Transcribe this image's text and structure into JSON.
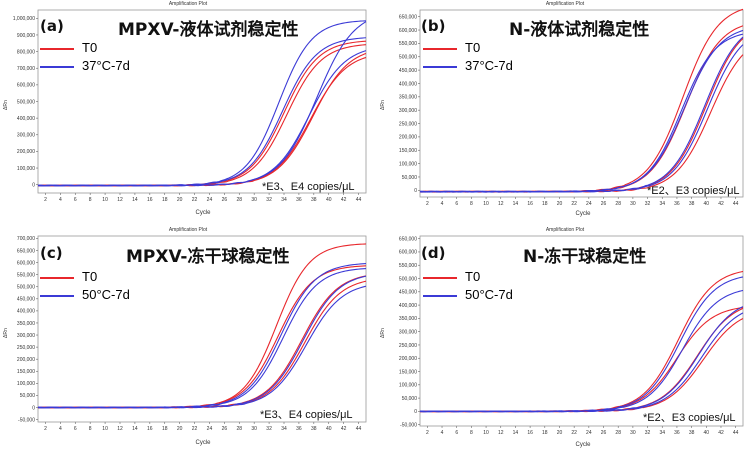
{
  "panels": [
    {
      "id": "a",
      "plot_title": "Amplification Plot",
      "label": "(a)",
      "title": "MPXV-液体试剂稳定性",
      "note": "*E3、E4 copies/μL",
      "legend": [
        {
          "name": "T0",
          "color": "#e8272c"
        },
        {
          "name": "37°C-7d",
          "color": "#3b3ad6"
        }
      ],
      "chart_data": {
        "type": "line",
        "xlabel": "Cycle",
        "ylabel": "ΔRn",
        "xlim": [
          1,
          45
        ],
        "ylim": [
          -50000,
          1050000
        ],
        "yticks": [
          0,
          100000,
          200000,
          300000,
          400000,
          500000,
          600000,
          700000,
          800000,
          900000,
          1000000
        ],
        "ytick_labels": [
          "0",
          "100,000",
          "200,000",
          "300,000",
          "400,000",
          "500,000",
          "600,000",
          "700,000",
          "800,000",
          "900,000",
          "1,000,000"
        ],
        "xticks": [
          2,
          4,
          6,
          8,
          10,
          12,
          14,
          16,
          18,
          20,
          22,
          24,
          26,
          28,
          30,
          32,
          34,
          36,
          38,
          40,
          42,
          44
        ],
        "series": [
          {
            "color": "#e8272c",
            "plateau": 870000,
            "midpoint": 34.0,
            "slope": 2.3,
            "baseline": -5000
          },
          {
            "color": "#e8272c",
            "plateau": 850000,
            "midpoint": 34.4,
            "slope": 2.3,
            "baseline": -5000
          },
          {
            "color": "#e8272c",
            "plateau": 800000,
            "midpoint": 37.6,
            "slope": 2.4,
            "baseline": -5000
          },
          {
            "color": "#e8272c",
            "plateau": 830000,
            "midpoint": 37.9,
            "slope": 2.4,
            "baseline": -5000
          },
          {
            "color": "#3b3ad6",
            "plateau": 990000,
            "midpoint": 33.3,
            "slope": 2.2,
            "baseline": -5000
          },
          {
            "color": "#3b3ad6",
            "plateau": 890000,
            "midpoint": 33.8,
            "slope": 2.3,
            "baseline": -5000
          },
          {
            "color": "#3b3ad6",
            "plateau": 1050000,
            "midpoint": 38.4,
            "slope": 2.5,
            "baseline": -5000
          },
          {
            "color": "#3b3ad6",
            "plateau": 840000,
            "midpoint": 37.4,
            "slope": 2.4,
            "baseline": -5000
          }
        ]
      }
    },
    {
      "id": "b",
      "plot_title": "Amplification Plot",
      "label": "(b)",
      "title": "N-液体试剂稳定性",
      "note": "*E2、E3 copies/μL",
      "legend": [
        {
          "name": "T0",
          "color": "#e8272c"
        },
        {
          "name": "37°C-7d",
          "color": "#3b3ad6"
        }
      ],
      "chart_data": {
        "type": "line",
        "xlabel": "Cycle",
        "ylabel": "ΔRn",
        "xlim": [
          1,
          45
        ],
        "ylim": [
          -25000,
          675000
        ],
        "yticks": [
          0,
          50000,
          100000,
          150000,
          200000,
          250000,
          300000,
          350000,
          400000,
          450000,
          500000,
          550000,
          600000,
          650000
        ],
        "ytick_labels": [
          "0",
          "50,000",
          "100,000",
          "150,000",
          "200,000",
          "250,000",
          "300,000",
          "350,000",
          "400,000",
          "450,000",
          "500,000",
          "550,000",
          "600,000",
          "650,000"
        ],
        "xticks": [
          2,
          4,
          6,
          8,
          10,
          12,
          14,
          16,
          18,
          20,
          22,
          24,
          26,
          28,
          30,
          32,
          34,
          36,
          38,
          40,
          42,
          44
        ],
        "series": [
          {
            "color": "#e8272c",
            "plateau": 700000,
            "midpoint": 36.8,
            "slope": 2.4,
            "baseline": -5000
          },
          {
            "color": "#e8272c",
            "plateau": 640000,
            "midpoint": 37.2,
            "slope": 2.4,
            "baseline": -5000
          },
          {
            "color": "#e8272c",
            "plateau": 640000,
            "midpoint": 40.0,
            "slope": 2.4,
            "baseline": -5000
          },
          {
            "color": "#e8272c",
            "plateau": 590000,
            "midpoint": 40.6,
            "slope": 2.4,
            "baseline": -5000
          },
          {
            "color": "#3b3ad6",
            "plateau": 600000,
            "midpoint": 36.6,
            "slope": 2.3,
            "baseline": -5000
          },
          {
            "color": "#3b3ad6",
            "plateau": 620000,
            "midpoint": 37.0,
            "slope": 2.4,
            "baseline": -5000
          },
          {
            "color": "#3b3ad6",
            "plateau": 640000,
            "midpoint": 39.8,
            "slope": 2.4,
            "baseline": -5000
          },
          {
            "color": "#3b3ad6",
            "plateau": 620000,
            "midpoint": 40.2,
            "slope": 2.4,
            "baseline": -5000
          }
        ]
      }
    },
    {
      "id": "c",
      "plot_title": "Amplification Plot",
      "label": "(c)",
      "title": "MPXV-冻干球稳定性",
      "note": "*E3、E4 copies/μL",
      "legend": [
        {
          "name": "T0",
          "color": "#e8272c"
        },
        {
          "name": "50°C-7d",
          "color": "#3b3ad6"
        }
      ],
      "chart_data": {
        "type": "line",
        "xlabel": "Cycle",
        "ylabel": "ΔRn",
        "xlim": [
          1,
          45
        ],
        "ylim": [
          -60000,
          710000
        ],
        "yticks": [
          -50000,
          0,
          50000,
          100000,
          150000,
          200000,
          250000,
          300000,
          350000,
          400000,
          450000,
          500000,
          550000,
          600000,
          650000,
          700000
        ],
        "ytick_labels": [
          "-50,000",
          "0",
          "50,000",
          "100,000",
          "150,000",
          "200,000",
          "250,000",
          "300,000",
          "350,000",
          "400,000",
          "450,000",
          "500,000",
          "550,000",
          "600,000",
          "650,000",
          "700,000"
        ],
        "xticks": [
          2,
          4,
          6,
          8,
          10,
          12,
          14,
          16,
          18,
          20,
          22,
          24,
          26,
          28,
          30,
          32,
          34,
          36,
          38,
          40,
          42,
          44
        ],
        "series": [
          {
            "color": "#e8272c",
            "plateau": 680000,
            "midpoint": 33.0,
            "slope": 2.2,
            "baseline": 0
          },
          {
            "color": "#e8272c",
            "plateau": 590000,
            "midpoint": 33.2,
            "slope": 2.3,
            "baseline": 0
          },
          {
            "color": "#e8272c",
            "plateau": 560000,
            "midpoint": 36.4,
            "slope": 2.4,
            "baseline": 0
          },
          {
            "color": "#e8272c",
            "plateau": 540000,
            "midpoint": 36.8,
            "slope": 2.4,
            "baseline": 0
          },
          {
            "color": "#3b3ad6",
            "plateau": 600000,
            "midpoint": 33.6,
            "slope": 2.3,
            "baseline": 0
          },
          {
            "color": "#3b3ad6",
            "plateau": 580000,
            "midpoint": 33.9,
            "slope": 2.3,
            "baseline": 0
          },
          {
            "color": "#3b3ad6",
            "plateau": 560000,
            "midpoint": 36.6,
            "slope": 2.4,
            "baseline": 0
          },
          {
            "color": "#3b3ad6",
            "plateau": 520000,
            "midpoint": 37.0,
            "slope": 2.4,
            "baseline": 0
          }
        ]
      }
    },
    {
      "id": "d",
      "plot_title": "Amplification Plot",
      "label": "(d)",
      "title": "N-冻干球稳定性",
      "note": "*E2、E3 copies/μL",
      "legend": [
        {
          "name": "T0",
          "color": "#e8272c"
        },
        {
          "name": "50°C-7d",
          "color": "#3b3ad6"
        }
      ],
      "chart_data": {
        "type": "line",
        "xlabel": "Cycle",
        "ylabel": "ΔRn",
        "xlim": [
          1,
          45
        ],
        "ylim": [
          -55000,
          660000
        ],
        "yticks": [
          -50000,
          0,
          50000,
          100000,
          150000,
          200000,
          250000,
          300000,
          350000,
          400000,
          450000,
          500000,
          550000,
          600000,
          650000
        ],
        "ytick_labels": [
          "-50,000",
          "0",
          "50,000",
          "100,000",
          "150,000",
          "200,000",
          "250,000",
          "300,000",
          "350,000",
          "400,000",
          "450,000",
          "500,000",
          "550,000",
          "600,000",
          "650,000"
        ],
        "xticks": [
          2,
          4,
          6,
          8,
          10,
          12,
          14,
          16,
          18,
          20,
          22,
          24,
          26,
          28,
          30,
          32,
          34,
          36,
          38,
          40,
          42,
          44
        ],
        "series": [
          {
            "color": "#e8272c",
            "plateau": 540000,
            "midpoint": 36.2,
            "slope": 2.4,
            "baseline": 0
          },
          {
            "color": "#e8272c",
            "plateau": 400000,
            "midpoint": 36.0,
            "slope": 2.4,
            "baseline": 0
          },
          {
            "color": "#e8272c",
            "plateau": 420000,
            "midpoint": 38.8,
            "slope": 2.5,
            "baseline": 0
          },
          {
            "color": "#e8272c",
            "plateau": 390000,
            "midpoint": 39.6,
            "slope": 2.5,
            "baseline": 0
          },
          {
            "color": "#3b3ad6",
            "plateau": 520000,
            "midpoint": 36.4,
            "slope": 2.4,
            "baseline": 0
          },
          {
            "color": "#3b3ad6",
            "plateau": 470000,
            "midpoint": 36.8,
            "slope": 2.4,
            "baseline": 0
          },
          {
            "color": "#3b3ad6",
            "plateau": 430000,
            "midpoint": 39.0,
            "slope": 2.5,
            "baseline": 0
          },
          {
            "color": "#3b3ad6",
            "plateau": 410000,
            "midpoint": 39.4,
            "slope": 2.5,
            "baseline": 0
          }
        ]
      }
    }
  ]
}
